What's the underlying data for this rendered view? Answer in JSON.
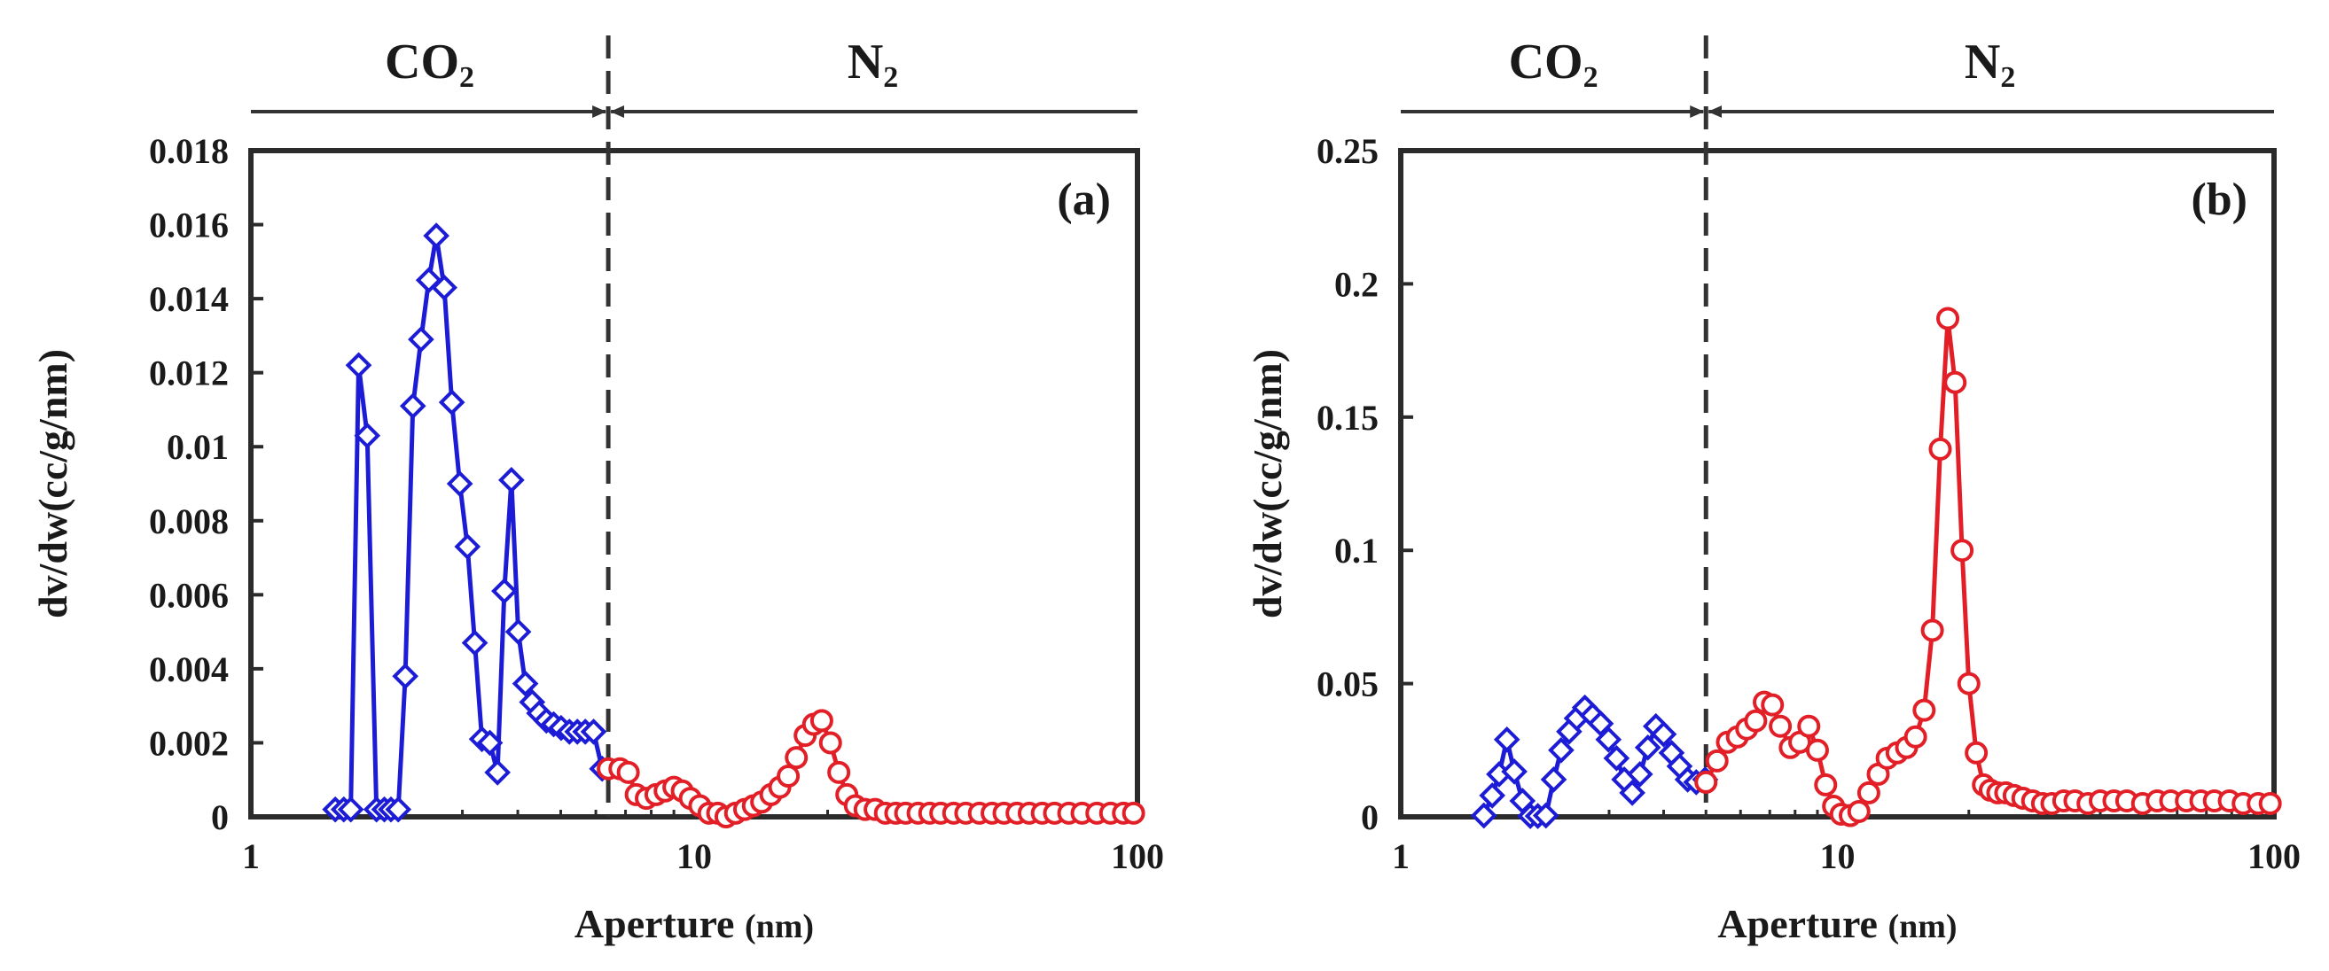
{
  "chart_data": [
    {
      "type": "line",
      "panel_label": "(a)",
      "xlabel": "Aperture",
      "xlabel_unit": "(nm)",
      "ylabel": "dv/dw(cc/g/nm)",
      "xscale": "log",
      "xlim": [
        1,
        100
      ],
      "ylim": [
        0,
        0.018
      ],
      "xticks": [
        1,
        10,
        100
      ],
      "xtick_labels": [
        "1",
        "10",
        "100"
      ],
      "yticks": [
        0,
        0.002,
        0.004,
        0.006,
        0.008,
        0.01,
        0.012,
        0.014,
        0.016,
        0.018
      ],
      "ytick_labels": [
        "0",
        "0.002",
        "0.004",
        "0.006",
        "0.008",
        "0.01",
        "0.012",
        "0.014",
        "0.016",
        "0.018"
      ],
      "divider_x": 6.4,
      "regions": [
        {
          "label": "CO",
          "subscript": "2",
          "side": "left"
        },
        {
          "label": "N",
          "subscript": "2",
          "side": "right"
        }
      ],
      "series": [
        {
          "name": "CO2",
          "color": "#1c1cd6",
          "marker": "diamond",
          "x": [
            1.55,
            1.62,
            1.68,
            1.75,
            1.83,
            1.92,
            2.0,
            2.07,
            2.15,
            2.23,
            2.32,
            2.42,
            2.52,
            2.62,
            2.73,
            2.84,
            2.96,
            3.08,
            3.2,
            3.32,
            3.46,
            3.6,
            3.73,
            3.87,
            4.01,
            4.16,
            4.31,
            4.47,
            4.64,
            4.82,
            5.01,
            5.23,
            5.45,
            5.68,
            5.93,
            6.2
          ],
          "values": [
            0.0002,
            0.0002,
            0.0002,
            0.0122,
            0.0103,
            0.0002,
            0.0002,
            0.0002,
            0.0002,
            0.0038,
            0.0111,
            0.0129,
            0.0145,
            0.0157,
            0.0143,
            0.0112,
            0.009,
            0.0073,
            0.0047,
            0.0021,
            0.002,
            0.0012,
            0.0061,
            0.0091,
            0.005,
            0.0036,
            0.0031,
            0.0028,
            0.0026,
            0.0025,
            0.0024,
            0.0023,
            0.0023,
            0.0023,
            0.0023,
            0.0013
          ]
        },
        {
          "name": "N2",
          "color": "#e21f26",
          "marker": "circle",
          "x": [
            6.4,
            6.8,
            7.1,
            7.4,
            7.8,
            8.2,
            8.6,
            9.0,
            9.4,
            9.8,
            10.3,
            10.8,
            11.3,
            11.8,
            12.4,
            13.0,
            13.6,
            14.2,
            14.9,
            15.6,
            16.3,
            17.0,
            17.8,
            18.6,
            19.4,
            20.3,
            21.2,
            22.1,
            23.1,
            24.3,
            25.6,
            27.0,
            28.5,
            30.0,
            32.0,
            34.0,
            36.0,
            38.5,
            41.0,
            44.0,
            47.0,
            50.0,
            53.5,
            57.0,
            61.0,
            65.0,
            70.0,
            75.0,
            81.0,
            87.0,
            93.0,
            98.0
          ],
          "values": [
            0.0013,
            0.0013,
            0.0012,
            0.0006,
            0.0005,
            0.0006,
            0.0007,
            0.0008,
            0.0007,
            0.0005,
            0.0003,
            0.0001,
            0.0001,
            0.0,
            0.0001,
            0.0002,
            0.0003,
            0.0004,
            0.0006,
            0.0008,
            0.0011,
            0.0016,
            0.0022,
            0.0025,
            0.0026,
            0.002,
            0.0012,
            0.0006,
            0.0003,
            0.0002,
            0.0002,
            0.0001,
            0.0001,
            0.0001,
            0.0001,
            0.0001,
            0.0001,
            0.0001,
            0.0001,
            0.0001,
            0.0001,
            0.0001,
            0.0001,
            0.0001,
            0.0001,
            0.0001,
            0.0001,
            0.0001,
            0.0001,
            0.0001,
            0.0001,
            0.0001
          ]
        }
      ]
    },
    {
      "type": "line",
      "panel_label": "(b)",
      "xlabel": "Aperture",
      "xlabel_unit": "(nm)",
      "ylabel": "dv/dw(cc/g/nm)",
      "xscale": "log",
      "xlim": [
        1,
        100
      ],
      "ylim": [
        0,
        0.25
      ],
      "xticks": [
        1,
        10,
        100
      ],
      "xtick_labels": [
        "1",
        "10",
        "100"
      ],
      "yticks": [
        0,
        0.05,
        0.1,
        0.15,
        0.2,
        0.25
      ],
      "ytick_labels": [
        "0",
        "0.05",
        "0.1",
        "0.15",
        "0.2",
        "0.25"
      ],
      "divider_x": 5.0,
      "regions": [
        {
          "label": "CO",
          "subscript": "2",
          "side": "left"
        },
        {
          "label": "N",
          "subscript": "2",
          "side": "right"
        }
      ],
      "series": [
        {
          "name": "CO2",
          "color": "#1c1cd6",
          "marker": "diamond",
          "x": [
            1.55,
            1.62,
            1.68,
            1.75,
            1.82,
            1.9,
            1.98,
            2.06,
            2.15,
            2.24,
            2.33,
            2.43,
            2.53,
            2.64,
            2.75,
            2.87,
            2.99,
            3.12,
            3.25,
            3.39,
            3.53,
            3.68,
            3.84,
            4.0,
            4.17,
            4.35,
            4.54,
            4.75,
            4.98
          ],
          "values": [
            0.0005,
            0.008,
            0.016,
            0.029,
            0.017,
            0.006,
            0.0003,
            0.0003,
            0.0005,
            0.014,
            0.025,
            0.032,
            0.037,
            0.041,
            0.038,
            0.035,
            0.029,
            0.022,
            0.014,
            0.009,
            0.016,
            0.026,
            0.034,
            0.031,
            0.024,
            0.019,
            0.014,
            0.013,
            0.014
          ]
        },
        {
          "name": "N2",
          "color": "#e21f26",
          "marker": "circle",
          "x": [
            5.0,
            5.3,
            5.6,
            5.9,
            6.2,
            6.5,
            6.8,
            7.1,
            7.4,
            7.8,
            8.2,
            8.6,
            9.0,
            9.4,
            9.8,
            10.2,
            10.7,
            11.2,
            11.8,
            12.4,
            13.0,
            13.7,
            14.4,
            15.1,
            15.8,
            16.5,
            17.2,
            17.9,
            18.6,
            19.3,
            20.0,
            20.8,
            21.6,
            22.4,
            23.3,
            24.3,
            25.4,
            26.6,
            28.0,
            29.5,
            31.0,
            33.0,
            35.0,
            37.5,
            40.0,
            43.0,
            46.0,
            50.0,
            54.0,
            58.0,
            63.0,
            68.0,
            73.0,
            79.0,
            85.0,
            92.0,
            98.0
          ],
          "values": [
            0.013,
            0.021,
            0.028,
            0.03,
            0.033,
            0.036,
            0.043,
            0.042,
            0.034,
            0.026,
            0.028,
            0.034,
            0.025,
            0.012,
            0.004,
            0.001,
            0.0005,
            0.002,
            0.009,
            0.016,
            0.022,
            0.024,
            0.026,
            0.03,
            0.04,
            0.07,
            0.138,
            0.187,
            0.163,
            0.1,
            0.05,
            0.024,
            0.012,
            0.01,
            0.009,
            0.009,
            0.008,
            0.007,
            0.006,
            0.005,
            0.005,
            0.006,
            0.006,
            0.005,
            0.006,
            0.006,
            0.006,
            0.005,
            0.006,
            0.006,
            0.006,
            0.006,
            0.006,
            0.006,
            0.005,
            0.005,
            0.005
          ]
        }
      ]
    }
  ]
}
